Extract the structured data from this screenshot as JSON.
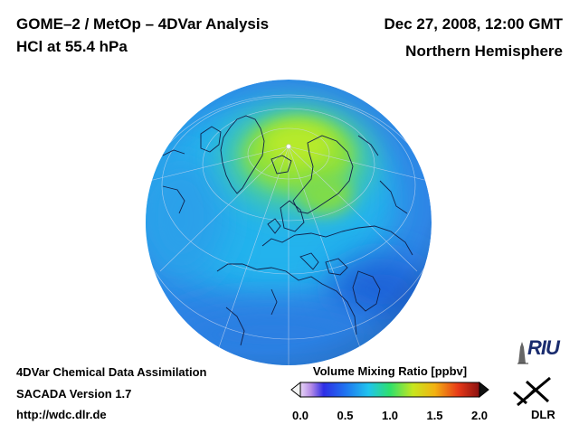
{
  "header": {
    "title_left_1": "GOME–2 / MetOp – 4DVar Analysis",
    "title_left_2": "HCl at 55.4 hPa",
    "title_right_1": "Dec 27, 2008, 12:00 GMT",
    "title_right_2": "Northern Hemisphere"
  },
  "footer": {
    "line1": "4DVar Chemical Data Assimilation",
    "line2": "SACADA Version 1.7",
    "line3": "http://wdc.dlr.de"
  },
  "colorbar": {
    "title": "Volume Mixing Ratio [ppbv]",
    "min": 0.0,
    "max": 2.0,
    "ticks": [
      "0.0",
      "0.5",
      "1.0",
      "1.5",
      "2.0"
    ]
  },
  "logos": {
    "riu": "RIU",
    "dlr": "DLR"
  },
  "colors": {
    "low": "#2f86e6",
    "mid": "#25c2ee",
    "high": "#8fe03a",
    "peak": "#b6ea2c"
  }
}
